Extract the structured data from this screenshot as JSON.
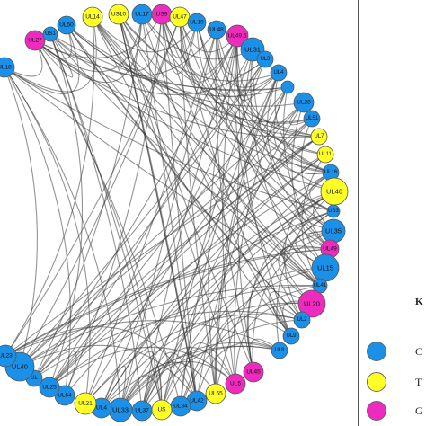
{
  "colors": {
    "blue": "#1a90e8",
    "yellow": "#ffff26",
    "magenta": "#ee2bbf"
  },
  "legend": {
    "heading": "K",
    "items": [
      {
        "label": "C",
        "color": "blue"
      },
      {
        "label": "T",
        "color": "yellow"
      },
      {
        "label": "G",
        "color": "magenta"
      }
    ]
  },
  "nodes": [
    {
      "id": "UL14",
      "color": "yellow"
    },
    {
      "id": "US10",
      "color": "yellow"
    },
    {
      "id": "UL17",
      "color": "blue"
    },
    {
      "id": "US9",
      "color": "magenta"
    },
    {
      "id": "UL47",
      "color": "yellow"
    },
    {
      "id": "UL19",
      "color": "blue"
    },
    {
      "id": "UL48",
      "color": "blue"
    },
    {
      "id": "UL49.5",
      "color": "magenta"
    },
    {
      "id": "UL31",
      "color": "blue"
    },
    {
      "id": "UL3",
      "color": "blue"
    },
    {
      "id": "UL4",
      "color": "blue"
    },
    {
      "id": "",
      "color": "blue"
    },
    {
      "id": "UL28",
      "color": "blue"
    },
    {
      "id": "UL51",
      "color": "blue"
    },
    {
      "id": "UL7",
      "color": "yellow"
    },
    {
      "id": "UL11",
      "color": "yellow"
    },
    {
      "id": "UL16",
      "color": "blue"
    },
    {
      "id": "UL46",
      "color": "yellow"
    },
    {
      "id": "US3",
      "color": "blue"
    },
    {
      "id": "UL35",
      "color": "blue"
    },
    {
      "id": "UL49",
      "color": "magenta"
    },
    {
      "id": "UL15",
      "color": "blue"
    },
    {
      "id": "UL41",
      "color": "blue"
    },
    {
      "id": "UL20",
      "color": "magenta"
    },
    {
      "id": "UL2",
      "color": "blue"
    },
    {
      "id": "UL9",
      "color": "blue"
    },
    {
      "id": "UL8",
      "color": "blue"
    },
    {
      "id": "UL45",
      "color": "magenta"
    },
    {
      "id": "UL5",
      "color": "magenta"
    },
    {
      "id": "UL55",
      "color": "yellow"
    },
    {
      "id": "UL42",
      "color": "blue"
    },
    {
      "id": "UL34",
      "color": "blue"
    },
    {
      "id": "US",
      "color": "yellow"
    },
    {
      "id": "UL37",
      "color": "blue"
    },
    {
      "id": "UL33",
      "color": "blue"
    },
    {
      "id": "UL4",
      "color": "blue"
    },
    {
      "id": "UL21",
      "color": "yellow"
    },
    {
      "id": "UL54",
      "color": "blue"
    },
    {
      "id": "UL25",
      "color": "blue"
    },
    {
      "id": "UL",
      "color": "blue"
    },
    {
      "id": "UL40",
      "color": "blue"
    },
    {
      "id": "UL23",
      "color": "blue"
    },
    {
      "id": "UL18",
      "color": "blue"
    },
    {
      "id": "UL27",
      "color": "magenta"
    },
    {
      "id": "US1",
      "color": "blue"
    },
    {
      "id": "UL50",
      "color": "blue"
    }
  ]
}
